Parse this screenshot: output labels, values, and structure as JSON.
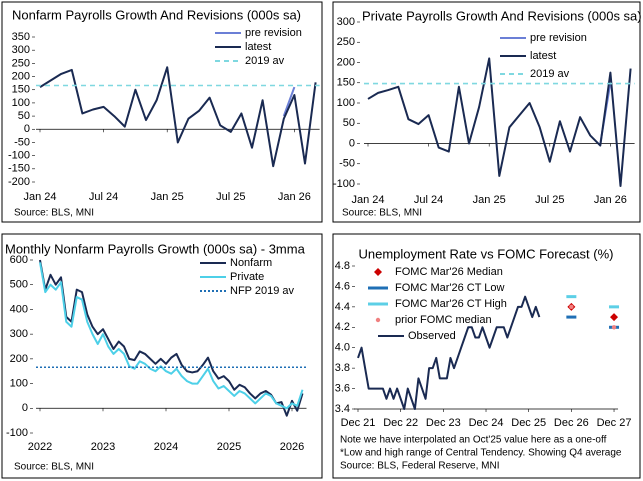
{
  "chart_data": [
    {
      "type": "line",
      "title": "Nonfarm Payrolls Growth And Revisions (000s sa)",
      "source": "Source: BLS, MNI",
      "categories": [
        "Jan 24",
        null,
        null,
        null,
        null,
        null,
        "Jul 24",
        null,
        null,
        null,
        null,
        null,
        "Jan 25",
        null,
        null,
        null,
        null,
        null,
        "Jul 25",
        null,
        null,
        null,
        null,
        null,
        "Jan 26",
        null,
        null
      ],
      "ylim": [
        -200,
        350
      ],
      "yticks": [
        -200,
        -150,
        -100,
        -50,
        0,
        50,
        100,
        150,
        200,
        250,
        300,
        350
      ],
      "legend": "upper right",
      "series": [
        {
          "name": "pre revision",
          "color": "#6b7fd6",
          "style": "line",
          "values": [
            null,
            null,
            null,
            null,
            null,
            null,
            null,
            null,
            null,
            null,
            null,
            null,
            null,
            null,
            null,
            null,
            null,
            null,
            null,
            null,
            null,
            null,
            null,
            50,
            160,
            null,
            null
          ]
        },
        {
          "name": "latest",
          "color": "#1a2a52",
          "style": "line",
          "values": [
            160,
            185,
            210,
            225,
            60,
            75,
            85,
            50,
            10,
            150,
            35,
            110,
            235,
            -50,
            40,
            70,
            120,
            15,
            -10,
            60,
            -70,
            110,
            -140,
            40,
            130,
            -130,
            178
          ]
        },
        {
          "name": "2019 av",
          "color": "#7fd8e0",
          "style": "hline",
          "value": 166
        }
      ]
    },
    {
      "type": "line",
      "title": "Private Payrolls Growth And Revisions (000s sa)",
      "source": "Source: BLS, MNI",
      "categories": [
        "Jan 24",
        null,
        null,
        null,
        null,
        null,
        "Jul 24",
        null,
        null,
        null,
        null,
        null,
        "Jan 25",
        null,
        null,
        null,
        null,
        null,
        "Jul 25",
        null,
        null,
        null,
        null,
        null,
        "Jan 26",
        null,
        null
      ],
      "ylim": [
        -100,
        300
      ],
      "yticks": [
        -100,
        -50,
        0,
        50,
        100,
        150,
        200,
        250,
        300
      ],
      "legend": "upper right",
      "series": [
        {
          "name": "pre revision",
          "color": "#6b7fd6",
          "style": "line",
          "values": [
            null,
            null,
            null,
            null,
            null,
            null,
            null,
            null,
            null,
            null,
            null,
            null,
            null,
            null,
            null,
            null,
            null,
            null,
            null,
            null,
            null,
            null,
            null,
            0,
            150,
            null,
            null
          ]
        },
        {
          "name": "latest",
          "color": "#1a2a52",
          "style": "line",
          "values": [
            110,
            125,
            132,
            140,
            60,
            48,
            70,
            -10,
            -20,
            140,
            0,
            90,
            210,
            -80,
            40,
            70,
            100,
            40,
            -45,
            55,
            -20,
            65,
            20,
            -5,
            175,
            -105,
            185
          ]
        },
        {
          "name": "2019 av",
          "color": "#7fd8e0",
          "style": "hline",
          "value": 148
        }
      ]
    },
    {
      "type": "line",
      "title": "Monthly Nonfarm Payrolls Growth (000s sa) - 3mma",
      "source": "Source: BLS, MNI",
      "categories": [
        "2022",
        null,
        null,
        null,
        null,
        null,
        null,
        null,
        null,
        null,
        null,
        null,
        "2023",
        null,
        null,
        null,
        null,
        null,
        null,
        null,
        null,
        null,
        null,
        null,
        "2024",
        null,
        null,
        null,
        null,
        null,
        null,
        null,
        null,
        null,
        null,
        null,
        "2025",
        null,
        null,
        null,
        null,
        null,
        null,
        null,
        null,
        null,
        null,
        null,
        "2026",
        null,
        null
      ],
      "ylim": [
        -100,
        600
      ],
      "yticks": [
        -100,
        0,
        100,
        200,
        300,
        400,
        500,
        600
      ],
      "legend": "upper right",
      "series": [
        {
          "name": "Nonfarm",
          "color": "#1a2a52",
          "style": "line",
          "values": [
            600,
            480,
            540,
            500,
            530,
            370,
            350,
            480,
            470,
            380,
            330,
            300,
            320,
            280,
            240,
            270,
            250,
            200,
            195,
            230,
            220,
            200,
            180,
            200,
            180,
            205,
            220,
            175,
            150,
            145,
            150,
            175,
            205,
            150,
            120,
            130,
            110,
            75,
            95,
            85,
            60,
            40,
            60,
            70,
            55,
            20,
            25,
            -30,
            30,
            -10,
            60
          ]
        },
        {
          "name": "Private",
          "color": "#4dd0e8",
          "style": "line",
          "values": [
            590,
            470,
            500,
            480,
            510,
            350,
            330,
            450,
            440,
            350,
            300,
            260,
            300,
            250,
            220,
            240,
            220,
            170,
            160,
            190,
            180,
            160,
            150,
            170,
            150,
            140,
            160,
            130,
            110,
            100,
            100,
            130,
            160,
            110,
            80,
            90,
            70,
            50,
            70,
            60,
            40,
            20,
            40,
            60,
            50,
            20,
            10,
            0,
            20,
            10,
            75
          ]
        },
        {
          "name": "NFP 2019 av",
          "color": "#1f6fb5",
          "style": "dotted-hline",
          "value": 166
        }
      ]
    },
    {
      "type": "line",
      "title": "Unemployment Rate vs FOMC Forecast (%)",
      "source": "Source: BLS, Federal Reserve, MNI",
      "notes": [
        "Note we have interpolated an Oct'25 value here as a one-off",
        "*Low and high range of Central Tendency. Showing Q4 average"
      ],
      "categories": [
        "Dec 21",
        null,
        null,
        null,
        null,
        null,
        null,
        null,
        null,
        null,
        null,
        null,
        "Dec 22",
        null,
        null,
        null,
        null,
        null,
        null,
        null,
        null,
        null,
        null,
        null,
        "Dec 23",
        null,
        null,
        null,
        null,
        null,
        null,
        null,
        null,
        null,
        null,
        null,
        "Dec 24",
        null,
        null,
        null,
        null,
        null,
        null,
        null,
        null,
        null,
        null,
        null,
        "Dec 25",
        null,
        null,
        null,
        null,
        null,
        null,
        null,
        null,
        null,
        null,
        null,
        "Dec 26",
        null,
        null,
        null,
        null,
        null,
        null,
        null,
        null,
        null,
        null,
        null,
        "Dec 27"
      ],
      "ylim": [
        3.4,
        4.8
      ],
      "yticks": [
        3.4,
        3.6,
        3.8,
        {
          "value": 4,
          "label": "4.0"
        },
        4.2,
        4.4,
        4.6,
        4.8
      ],
      "legend": "upper left",
      "series": [
        {
          "name": "FOMC Mar'26 Median",
          "color": "#cc0000",
          "style": "diamond",
          "x": [
            "Dec 26",
            "Dec 27"
          ],
          "values": [
            4.4,
            4.3
          ]
        },
        {
          "name": "FOMC Mar'26 CT Low",
          "color": "#1f6fb5",
          "style": "dash-marker",
          "x": [
            "Dec 26",
            "Dec 27"
          ],
          "values": [
            4.3,
            4.2
          ]
        },
        {
          "name": "FOMC Mar'26 CT High",
          "color": "#5ccfe6",
          "style": "dash-marker",
          "x": [
            "Dec 26",
            "Dec 27"
          ],
          "values": [
            4.5,
            4.4
          ]
        },
        {
          "name": "prior FOMC median",
          "color": "#f08080",
          "style": "dot",
          "x": [
            "Dec 26",
            "Dec 27"
          ],
          "values": [
            4.4,
            4.2
          ]
        },
        {
          "name": "Observed",
          "color": "#1a2a52",
          "style": "line",
          "values": [
            3.9,
            4.0,
            3.8,
            3.6,
            3.6,
            3.6,
            3.6,
            3.6,
            3.5,
            3.6,
            3.5,
            3.6,
            3.5,
            3.4,
            3.6,
            3.5,
            3.4,
            3.7,
            3.6,
            3.5,
            3.8,
            3.8,
            3.9,
            3.7,
            3.7,
            3.7,
            3.9,
            3.8,
            3.9,
            4.0,
            4.1,
            4.2,
            4.2,
            4.1,
            4.1,
            4.2,
            4.1,
            4.0,
            4.1,
            4.2,
            4.2,
            4.2,
            4.1,
            4.2,
            4.3,
            4.4,
            4.4,
            4.5,
            4.4,
            4.3,
            4.4,
            4.3,
            null,
            null,
            null,
            null,
            null,
            null,
            null,
            null,
            null,
            null,
            null,
            null,
            null,
            null,
            null,
            null,
            null,
            null,
            null,
            null,
            null
          ]
        }
      ]
    }
  ]
}
